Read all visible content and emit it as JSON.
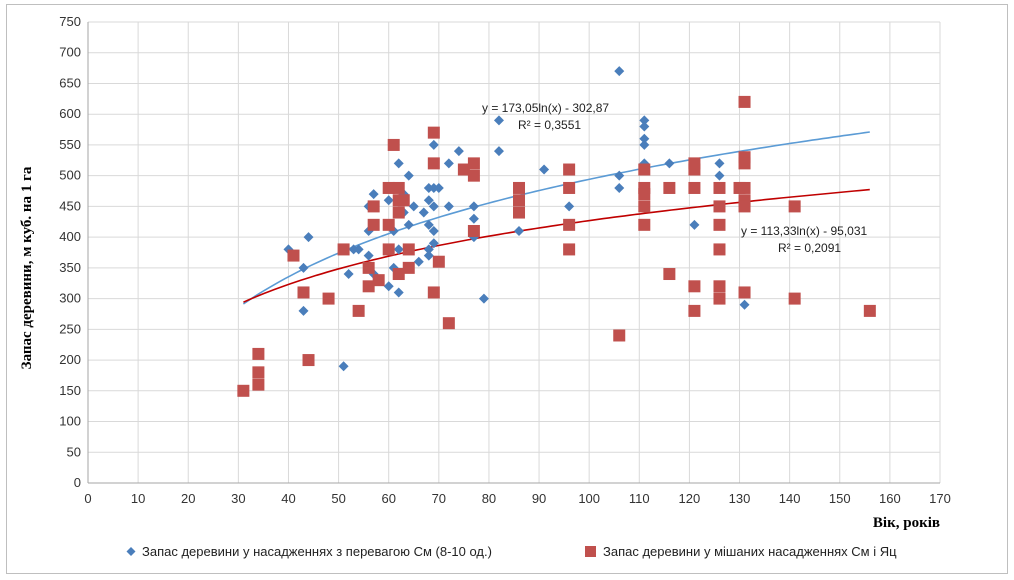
{
  "chart_data": {
    "type": "scatter",
    "xlabel": "Вік, років",
    "ylabel": "Запас деревини, м куб. на 1 га",
    "xlim": [
      0,
      170
    ],
    "ylim": [
      0,
      750
    ],
    "xticks": [
      "0",
      "10",
      "20",
      "30",
      "40",
      "50",
      "60",
      "70",
      "80",
      "90",
      "100",
      "110",
      "120",
      "130",
      "140",
      "150",
      "160",
      "170"
    ],
    "yticks": [
      "0",
      "50",
      "100",
      "150",
      "200",
      "250",
      "300",
      "350",
      "400",
      "450",
      "500",
      "550",
      "600",
      "650",
      "700",
      "750"
    ],
    "grid": true,
    "legend_position": "bottom",
    "series": [
      {
        "name": "Запас деревини у насадженнях з перевагою См (8-10 од.)",
        "marker": "diamond",
        "color": "#4a7ebb",
        "points": [
          [
            40,
            380
          ],
          [
            43,
            350
          ],
          [
            43,
            280
          ],
          [
            44,
            400
          ],
          [
            51,
            190
          ],
          [
            51,
            380
          ],
          [
            52,
            340
          ],
          [
            53,
            380
          ],
          [
            54,
            380
          ],
          [
            56,
            410
          ],
          [
            56,
            450
          ],
          [
            56,
            370
          ],
          [
            57,
            470
          ],
          [
            57,
            340
          ],
          [
            57,
            450
          ],
          [
            58,
            330
          ],
          [
            60,
            320
          ],
          [
            60,
            460
          ],
          [
            61,
            350
          ],
          [
            61,
            410
          ],
          [
            62,
            520
          ],
          [
            62,
            380
          ],
          [
            62,
            310
          ],
          [
            63,
            470
          ],
          [
            63,
            440
          ],
          [
            64,
            500
          ],
          [
            64,
            420
          ],
          [
            64,
            350
          ],
          [
            65,
            450
          ],
          [
            66,
            360
          ],
          [
            67,
            440
          ],
          [
            68,
            480
          ],
          [
            68,
            460
          ],
          [
            68,
            420
          ],
          [
            68,
            380
          ],
          [
            68,
            370
          ],
          [
            69,
            550
          ],
          [
            69,
            480
          ],
          [
            69,
            450
          ],
          [
            69,
            410
          ],
          [
            69,
            390
          ],
          [
            70,
            480
          ],
          [
            72,
            520
          ],
          [
            72,
            450
          ],
          [
            74,
            540
          ],
          [
            77,
            450
          ],
          [
            77,
            430
          ],
          [
            77,
            400
          ],
          [
            79,
            300
          ],
          [
            82,
            590
          ],
          [
            82,
            540
          ],
          [
            86,
            410
          ],
          [
            91,
            510
          ],
          [
            96,
            450
          ],
          [
            106,
            670
          ],
          [
            106,
            500
          ],
          [
            106,
            480
          ],
          [
            111,
            590
          ],
          [
            111,
            580
          ],
          [
            111,
            560
          ],
          [
            111,
            550
          ],
          [
            111,
            520
          ],
          [
            116,
            520
          ],
          [
            121,
            420
          ],
          [
            126,
            520
          ],
          [
            126,
            500
          ],
          [
            131,
            290
          ]
        ]
      },
      {
        "name": "Запас деревини у мішаних насадженнях См і Яц",
        "marker": "square",
        "color": "#c0504d",
        "points": [
          [
            31,
            150
          ],
          [
            34,
            210
          ],
          [
            34,
            180
          ],
          [
            34,
            160
          ],
          [
            41,
            370
          ],
          [
            43,
            310
          ],
          [
            44,
            200
          ],
          [
            48,
            300
          ],
          [
            51,
            380
          ],
          [
            54,
            280
          ],
          [
            56,
            350
          ],
          [
            56,
            320
          ],
          [
            57,
            420
          ],
          [
            57,
            450
          ],
          [
            58,
            330
          ],
          [
            60,
            480
          ],
          [
            60,
            420
          ],
          [
            60,
            380
          ],
          [
            61,
            550
          ],
          [
            62,
            480
          ],
          [
            62,
            460
          ],
          [
            62,
            440
          ],
          [
            62,
            340
          ],
          [
            63,
            460
          ],
          [
            64,
            380
          ],
          [
            64,
            350
          ],
          [
            69,
            570
          ],
          [
            69,
            520
          ],
          [
            69,
            310
          ],
          [
            70,
            360
          ],
          [
            72,
            260
          ],
          [
            75,
            510
          ],
          [
            77,
            520
          ],
          [
            77,
            500
          ],
          [
            77,
            410
          ],
          [
            86,
            480
          ],
          [
            86,
            460
          ],
          [
            86,
            440
          ],
          [
            96,
            510
          ],
          [
            96,
            480
          ],
          [
            96,
            420
          ],
          [
            96,
            380
          ],
          [
            106,
            240
          ],
          [
            111,
            510
          ],
          [
            111,
            480
          ],
          [
            111,
            470
          ],
          [
            111,
            450
          ],
          [
            111,
            420
          ],
          [
            116,
            480
          ],
          [
            116,
            340
          ],
          [
            121,
            520
          ],
          [
            121,
            510
          ],
          [
            121,
            480
          ],
          [
            121,
            320
          ],
          [
            121,
            280
          ],
          [
            126,
            480
          ],
          [
            126,
            450
          ],
          [
            126,
            420
          ],
          [
            126,
            380
          ],
          [
            126,
            320
          ],
          [
            126,
            300
          ],
          [
            130,
            480
          ],
          [
            131,
            620
          ],
          [
            131,
            530
          ],
          [
            131,
            520
          ],
          [
            131,
            480
          ],
          [
            131,
            460
          ],
          [
            131,
            450
          ],
          [
            131,
            310
          ],
          [
            141,
            450
          ],
          [
            141,
            300
          ],
          [
            156,
            280
          ]
        ]
      }
    ],
    "trendlines": [
      {
        "series": 0,
        "a": 173.05,
        "b": -302.87,
        "x_range": [
          31,
          156
        ],
        "color": "#5b9bd5",
        "equation": "y = 173,05ln(x) - 302,87",
        "r2": "R² = 0,3551"
      },
      {
        "series": 1,
        "a": 113.33,
        "b": -95.031,
        "x_range": [
          31,
          156
        ],
        "color": "#c00000",
        "equation": "y = 113,33ln(x) - 95,031",
        "r2": "R² = 0,2091"
      }
    ]
  }
}
